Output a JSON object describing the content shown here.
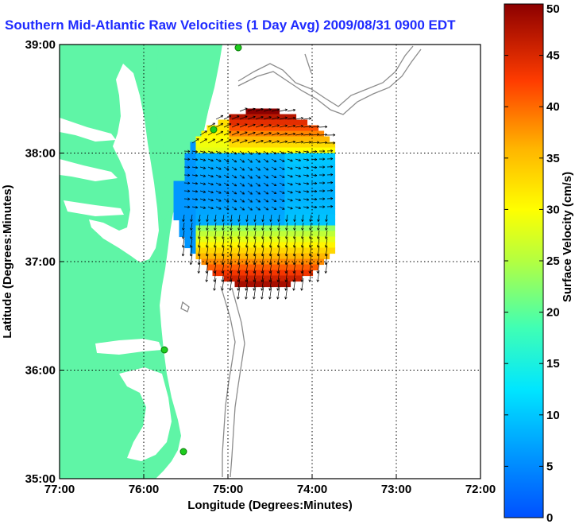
{
  "title": "Southern Mid-Atlantic Raw Velocities (1 Day Avg) 2009/08/31 0900 EDT",
  "map": {
    "x_label": "Longitude (Degrees:Minutes)",
    "y_label": "Latitude (Degrees:Minutes)",
    "x_ticks": [
      "77:00",
      "76:00",
      "75:00",
      "74:00",
      "73:00",
      "72:00"
    ],
    "y_ticks": [
      "39:00",
      "38:00",
      "37:00",
      "36:00",
      "35:00"
    ],
    "land_color": "#5ff5a6",
    "water_color": "#ffffff",
    "grid": true
  },
  "colorbar": {
    "label": "Surface Velocity (cm/s)",
    "ticks": [
      "50",
      "45",
      "40",
      "35",
      "30",
      "25",
      "20",
      "15",
      "10",
      "5",
      "0"
    ],
    "range": [
      0,
      50
    ],
    "colormap": "jet"
  },
  "icons": {
    "station": "station-marker-icon"
  }
}
